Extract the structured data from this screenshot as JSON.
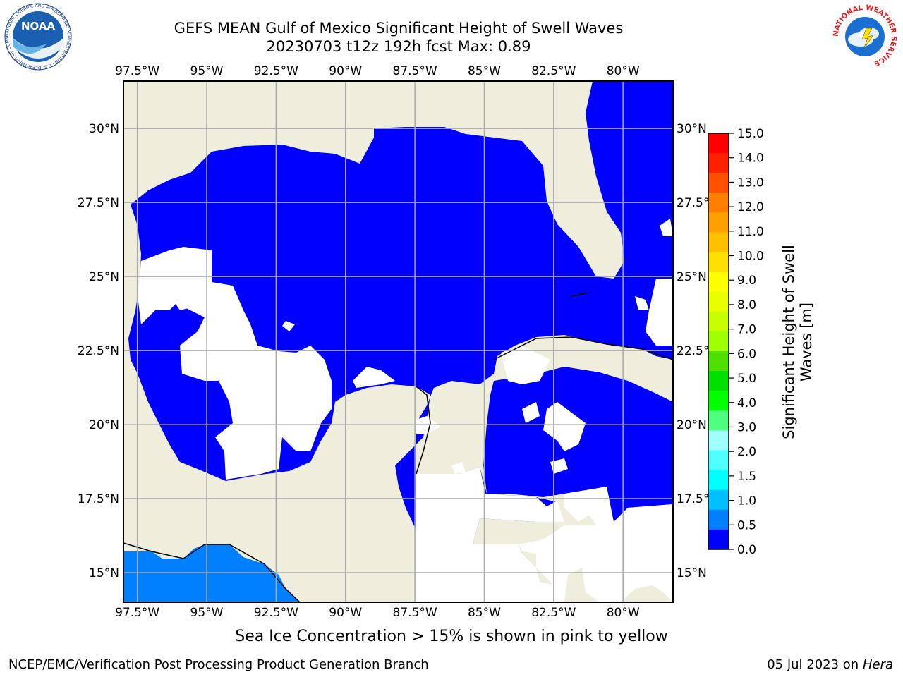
{
  "title_line1": "GEFS MEAN Gulf of Mexico Significant Height of Swell Waves",
  "title_line2": "20230703 t12z 192h fcst   Max: 0.89",
  "map": {
    "lon_ticks": [
      "97.5°W",
      "95°W",
      "92.5°W",
      "90°W",
      "87.5°W",
      "85°W",
      "82.5°W",
      "80°W"
    ],
    "lon_values": [
      -97.5,
      -95,
      -92.5,
      -90,
      -87.5,
      -85,
      -82.5,
      -80
    ],
    "lat_ticks": [
      "30°N",
      "27.5°N",
      "25°N",
      "22.5°N",
      "20°N",
      "17.5°N",
      "15°N"
    ],
    "lat_values": [
      30,
      27.5,
      25,
      22.5,
      20,
      17.5,
      15
    ],
    "lon_range": [
      -98,
      -78.2
    ],
    "lat_range": [
      14,
      31.6
    ],
    "colors": {
      "land": "#efeddc",
      "swell_low": "#0000ff",
      "swell_mid": "#0080ff",
      "no_data": "#ffffff",
      "grid": "#aaaaaa"
    }
  },
  "colorbar": {
    "label_line1": "Significant Height of Swell",
    "label_line2": "Waves [m]",
    "tick_labels": [
      "15.0",
      "14.0",
      "13.0",
      "12.0",
      "11.0",
      "10.0",
      "9.0",
      "8.0",
      "7.0",
      "6.0",
      "5.0",
      "4.0",
      "3.0",
      "2.0",
      "1.5",
      "1.0",
      "0.5",
      "0.0"
    ],
    "colors": [
      "#ff0000",
      "#ff2000",
      "#ff5000",
      "#ff8000",
      "#ffa000",
      "#ffc000",
      "#ffe000",
      "#ffff00",
      "#e8ff00",
      "#c8ff00",
      "#a0ff00",
      "#50e000",
      "#00e000",
      "#00ff00",
      "#50ff80",
      "#a0ffff",
      "#50ffff",
      "#00ffff",
      "#00c0ff",
      "#0080ff",
      "#0000ff"
    ]
  },
  "caption": "Sea Ice Concentration > 15% is shown in pink to yellow",
  "footer_left": "NCEP/EMC/Verification Post Processing Product Generation Branch",
  "footer_date": "05 Jul 2023 on",
  "footer_machine": "Hera",
  "logos": {
    "left": "NOAA",
    "left_ring": "NATIONAL OCEANIC AND ATMOSPHERIC ADMINISTRATION · U.S. DEPARTMENT OF COMMERCE",
    "right_ring": "NATIONAL WEATHER SERVICE"
  }
}
